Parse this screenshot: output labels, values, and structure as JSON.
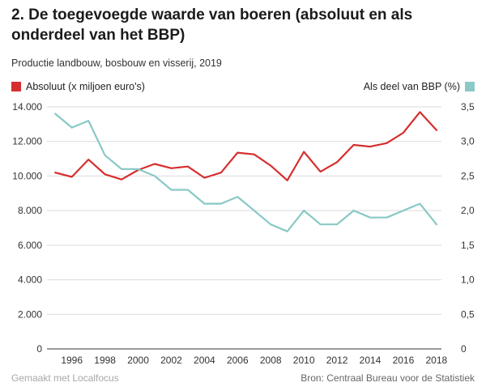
{
  "title": "2. De toegevoegde waarde van boeren (absoluut en als onderdeel van het BBP)",
  "subtitle": "Productie landbouw, bosbouw en visserij, 2019",
  "legend": {
    "left_label": "Absoluut (x miljoen euro's)",
    "right_label": "Als deel van BBP (%)"
  },
  "footer": {
    "made_with": "Gemaakt met Localfocus",
    "source": "Bron: Centraal Bureau voor de Statistiek"
  },
  "colors": {
    "absolute": "#d62e2e",
    "share": "#89c9c6",
    "grid": "#dcdcdc",
    "axis": "#333333"
  },
  "chart_data": {
    "type": "line",
    "title": "2. De toegevoegde waarde van boeren (absoluut en als onderdeel van het BBP)",
    "x": [
      1995,
      1996,
      1997,
      1998,
      1999,
      2000,
      2001,
      2002,
      2003,
      2004,
      2005,
      2006,
      2007,
      2008,
      2009,
      2010,
      2011,
      2012,
      2013,
      2014,
      2015,
      2016,
      2017,
      2018
    ],
    "x_tick_labels": [
      "1996",
      "1998",
      "2000",
      "2002",
      "2004",
      "2006",
      "2008",
      "2010",
      "2012",
      "2014",
      "2016",
      "2018"
    ],
    "xlim": [
      1994.5,
      2018.3
    ],
    "y_left": {
      "label": "Absoluut (x miljoen euro's)",
      "lim": [
        0,
        14000
      ],
      "tick_labels": [
        "0",
        "2.000",
        "4.000",
        "6.000",
        "8.000",
        "10.000",
        "12.000",
        "14.000"
      ]
    },
    "y_right": {
      "label": "Als deel van BBP (%)",
      "lim": [
        0,
        3.5
      ],
      "tick_labels": [
        "0",
        "0,5",
        "1,0",
        "1,5",
        "2,0",
        "2,5",
        "3,0",
        "3,5"
      ]
    },
    "series": [
      {
        "name": "Absoluut (x miljoen euro's)",
        "axis": "left",
        "values": [
          10200,
          9950,
          10950,
          10100,
          9800,
          10350,
          10700,
          10450,
          10550,
          9900,
          10200,
          11350,
          11250,
          10600,
          9750,
          11400,
          10250,
          10800,
          11800,
          11700,
          11900,
          12500,
          13700,
          12650
        ]
      },
      {
        "name": "Als deel van BBP (%)",
        "axis": "right",
        "values": [
          3.4,
          3.2,
          3.3,
          2.8,
          2.6,
          2.6,
          2.5,
          2.3,
          2.3,
          2.1,
          2.1,
          2.2,
          2.0,
          1.8,
          1.7,
          2.0,
          1.8,
          1.8,
          2.0,
          1.9,
          1.9,
          2.0,
          2.1,
          1.8
        ]
      }
    ],
    "grid": true
  }
}
